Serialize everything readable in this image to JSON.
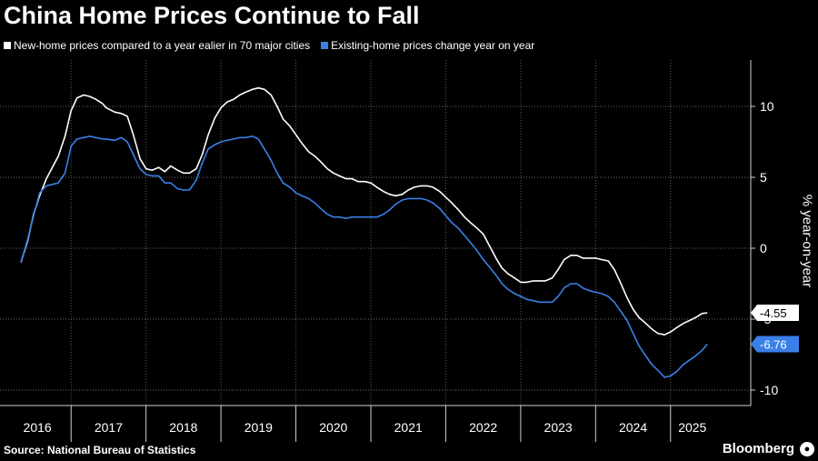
{
  "header": {
    "title": "China Home Prices Continue to Fall"
  },
  "footer": {
    "source": "Source: National Bureau of Statistics",
    "brand": "Bloomberg"
  },
  "chart_data": {
    "type": "line",
    "title": "China Home Prices Continue to Fall",
    "xlabel": "",
    "ylabel": "% year-on-year",
    "ylim": [
      -11,
      13
    ],
    "yticks": [
      10,
      5,
      0,
      -5,
      -10
    ],
    "ytick_labels": [
      "10",
      "5",
      "0",
      "-5",
      "-10"
    ],
    "xlim": [
      2015.83,
      2025.42
    ],
    "x_tick_labels": [
      "2016",
      "2017",
      "2018",
      "2019",
      "2020",
      "2021",
      "2022",
      "2023",
      "2024",
      "2025"
    ],
    "grid": true,
    "legend_position": "top-left",
    "series": [
      {
        "name": "New-home prices compared to a year ealier in 70 major cities",
        "color": "#ffffff",
        "end_label": "-4.55",
        "points": [
          [
            2015.83,
            -1.0
          ],
          [
            2015.92,
            0.5
          ],
          [
            2016.0,
            2.4
          ],
          [
            2016.08,
            3.7
          ],
          [
            2016.17,
            4.9
          ],
          [
            2016.25,
            5.7
          ],
          [
            2016.33,
            6.5
          ],
          [
            2016.42,
            7.9
          ],
          [
            2016.5,
            9.7
          ],
          [
            2016.58,
            10.6
          ],
          [
            2016.67,
            10.8
          ],
          [
            2016.75,
            10.7
          ],
          [
            2016.83,
            10.5
          ],
          [
            2016.92,
            10.2
          ],
          [
            2016.97,
            9.9
          ],
          [
            2017.08,
            9.6
          ],
          [
            2017.17,
            9.5
          ],
          [
            2017.25,
            9.3
          ],
          [
            2017.33,
            8.0
          ],
          [
            2017.42,
            6.3
          ],
          [
            2017.5,
            5.6
          ],
          [
            2017.58,
            5.5
          ],
          [
            2017.67,
            5.7
          ],
          [
            2017.75,
            5.4
          ],
          [
            2017.83,
            5.8
          ],
          [
            2017.92,
            5.5
          ],
          [
            2018.0,
            5.3
          ],
          [
            2018.08,
            5.3
          ],
          [
            2018.17,
            5.6
          ],
          [
            2018.25,
            6.6
          ],
          [
            2018.33,
            8.0
          ],
          [
            2018.42,
            9.2
          ],
          [
            2018.5,
            9.9
          ],
          [
            2018.58,
            10.3
          ],
          [
            2018.67,
            10.5
          ],
          [
            2018.75,
            10.8
          ],
          [
            2018.83,
            11.0
          ],
          [
            2018.92,
            11.2
          ],
          [
            2019.0,
            11.3
          ],
          [
            2019.08,
            11.2
          ],
          [
            2019.17,
            10.8
          ],
          [
            2019.25,
            10.0
          ],
          [
            2019.33,
            9.1
          ],
          [
            2019.42,
            8.6
          ],
          [
            2019.5,
            8.0
          ],
          [
            2019.58,
            7.4
          ],
          [
            2019.67,
            6.8
          ],
          [
            2019.75,
            6.5
          ],
          [
            2019.83,
            6.1
          ],
          [
            2019.92,
            5.6
          ],
          [
            2020.0,
            5.3
          ],
          [
            2020.08,
            5.1
          ],
          [
            2020.17,
            4.9
          ],
          [
            2020.25,
            4.9
          ],
          [
            2020.33,
            4.7
          ],
          [
            2020.42,
            4.7
          ],
          [
            2020.5,
            4.6
          ],
          [
            2020.58,
            4.3
          ],
          [
            2020.67,
            4.0
          ],
          [
            2020.75,
            3.8
          ],
          [
            2020.83,
            3.7
          ],
          [
            2020.92,
            3.8
          ],
          [
            2021.0,
            4.1
          ],
          [
            2021.08,
            4.3
          ],
          [
            2021.17,
            4.4
          ],
          [
            2021.25,
            4.4
          ],
          [
            2021.33,
            4.3
          ],
          [
            2021.42,
            4.0
          ],
          [
            2021.5,
            3.6
          ],
          [
            2021.58,
            3.2
          ],
          [
            2021.67,
            2.7
          ],
          [
            2021.75,
            2.2
          ],
          [
            2021.83,
            1.8
          ],
          [
            2021.92,
            1.4
          ],
          [
            2022.0,
            1.0
          ],
          [
            2022.08,
            0.2
          ],
          [
            2022.17,
            -0.7
          ],
          [
            2022.25,
            -1.4
          ],
          [
            2022.33,
            -1.8
          ],
          [
            2022.42,
            -2.1
          ],
          [
            2022.5,
            -2.4
          ],
          [
            2022.58,
            -2.4
          ],
          [
            2022.67,
            -2.3
          ],
          [
            2022.75,
            -2.3
          ],
          [
            2022.83,
            -2.3
          ],
          [
            2022.92,
            -2.1
          ],
          [
            2023.0,
            -1.5
          ],
          [
            2023.08,
            -0.8
          ],
          [
            2023.17,
            -0.5
          ],
          [
            2023.25,
            -0.5
          ],
          [
            2023.33,
            -0.7
          ],
          [
            2023.42,
            -0.7
          ],
          [
            2023.5,
            -0.7
          ],
          [
            2023.58,
            -0.8
          ],
          [
            2023.67,
            -0.9
          ],
          [
            2023.75,
            -1.5
          ],
          [
            2023.83,
            -2.4
          ],
          [
            2023.92,
            -3.5
          ],
          [
            2024.0,
            -4.3
          ],
          [
            2024.08,
            -4.9
          ],
          [
            2024.17,
            -5.3
          ],
          [
            2024.25,
            -5.7
          ],
          [
            2024.33,
            -6.0
          ],
          [
            2024.42,
            -6.1
          ],
          [
            2024.5,
            -5.9
          ],
          [
            2024.58,
            -5.6
          ],
          [
            2024.67,
            -5.3
          ],
          [
            2024.75,
            -5.1
          ],
          [
            2024.83,
            -4.9
          ],
          [
            2024.92,
            -4.6
          ],
          [
            2024.99,
            -4.55
          ]
        ]
      },
      {
        "name": "Existing-home prices change year on year",
        "color": "#3a80e8",
        "end_label": "-6.76",
        "points": [
          [
            2015.83,
            -1.0
          ],
          [
            2015.92,
            0.6
          ],
          [
            2016.0,
            2.3
          ],
          [
            2016.08,
            3.9
          ],
          [
            2016.17,
            4.4
          ],
          [
            2016.25,
            4.5
          ],
          [
            2016.33,
            4.6
          ],
          [
            2016.42,
            5.3
          ],
          [
            2016.5,
            7.2
          ],
          [
            2016.58,
            7.7
          ],
          [
            2016.67,
            7.8
          ],
          [
            2016.75,
            7.9
          ],
          [
            2016.83,
            7.8
          ],
          [
            2016.92,
            7.7
          ],
          [
            2016.97,
            7.7
          ],
          [
            2017.08,
            7.6
          ],
          [
            2017.17,
            7.8
          ],
          [
            2017.25,
            7.5
          ],
          [
            2017.33,
            6.6
          ],
          [
            2017.42,
            5.6
          ],
          [
            2017.5,
            5.2
          ],
          [
            2017.58,
            5.1
          ],
          [
            2017.67,
            5.1
          ],
          [
            2017.75,
            4.6
          ],
          [
            2017.83,
            4.6
          ],
          [
            2017.92,
            4.2
          ],
          [
            2018.0,
            4.1
          ],
          [
            2018.08,
            4.1
          ],
          [
            2018.17,
            4.8
          ],
          [
            2018.25,
            6.0
          ],
          [
            2018.33,
            7.0
          ],
          [
            2018.42,
            7.3
          ],
          [
            2018.5,
            7.5
          ],
          [
            2018.58,
            7.6
          ],
          [
            2018.67,
            7.7
          ],
          [
            2018.75,
            7.8
          ],
          [
            2018.83,
            7.8
          ],
          [
            2018.92,
            7.9
          ],
          [
            2019.0,
            7.7
          ],
          [
            2019.08,
            7.0
          ],
          [
            2019.17,
            6.2
          ],
          [
            2019.25,
            5.3
          ],
          [
            2019.33,
            4.6
          ],
          [
            2019.42,
            4.3
          ],
          [
            2019.5,
            3.9
          ],
          [
            2019.58,
            3.7
          ],
          [
            2019.67,
            3.5
          ],
          [
            2019.75,
            3.2
          ],
          [
            2019.83,
            2.8
          ],
          [
            2019.92,
            2.4
          ],
          [
            2020.0,
            2.2
          ],
          [
            2020.08,
            2.2
          ],
          [
            2020.17,
            2.1
          ],
          [
            2020.25,
            2.2
          ],
          [
            2020.33,
            2.2
          ],
          [
            2020.42,
            2.2
          ],
          [
            2020.5,
            2.2
          ],
          [
            2020.58,
            2.2
          ],
          [
            2020.67,
            2.4
          ],
          [
            2020.75,
            2.7
          ],
          [
            2020.83,
            3.1
          ],
          [
            2020.92,
            3.4
          ],
          [
            2021.0,
            3.5
          ],
          [
            2021.08,
            3.5
          ],
          [
            2021.17,
            3.5
          ],
          [
            2021.25,
            3.4
          ],
          [
            2021.33,
            3.2
          ],
          [
            2021.42,
            2.8
          ],
          [
            2021.5,
            2.3
          ],
          [
            2021.58,
            1.8
          ],
          [
            2021.67,
            1.4
          ],
          [
            2021.75,
            0.9
          ],
          [
            2021.83,
            0.4
          ],
          [
            2021.92,
            -0.2
          ],
          [
            2022.0,
            -0.8
          ],
          [
            2022.08,
            -1.3
          ],
          [
            2022.17,
            -1.9
          ],
          [
            2022.25,
            -2.5
          ],
          [
            2022.33,
            -2.9
          ],
          [
            2022.42,
            -3.2
          ],
          [
            2022.5,
            -3.4
          ],
          [
            2022.58,
            -3.6
          ],
          [
            2022.67,
            -3.7
          ],
          [
            2022.75,
            -3.8
          ],
          [
            2022.83,
            -3.8
          ],
          [
            2022.92,
            -3.8
          ],
          [
            2023.0,
            -3.4
          ],
          [
            2023.08,
            -2.8
          ],
          [
            2023.17,
            -2.5
          ],
          [
            2023.25,
            -2.5
          ],
          [
            2023.33,
            -2.8
          ],
          [
            2023.42,
            -3.0
          ],
          [
            2023.5,
            -3.1
          ],
          [
            2023.58,
            -3.2
          ],
          [
            2023.67,
            -3.4
          ],
          [
            2023.75,
            -3.8
          ],
          [
            2023.83,
            -4.4
          ],
          [
            2023.92,
            -5.1
          ],
          [
            2024.0,
            -6.0
          ],
          [
            2024.08,
            -6.9
          ],
          [
            2024.17,
            -7.6
          ],
          [
            2024.25,
            -8.2
          ],
          [
            2024.33,
            -8.6
          ],
          [
            2024.42,
            -9.1
          ],
          [
            2024.5,
            -9.0
          ],
          [
            2024.58,
            -8.7
          ],
          [
            2024.67,
            -8.2
          ],
          [
            2024.75,
            -7.9
          ],
          [
            2024.83,
            -7.6
          ],
          [
            2024.92,
            -7.2
          ],
          [
            2024.99,
            -6.76
          ]
        ]
      }
    ]
  }
}
